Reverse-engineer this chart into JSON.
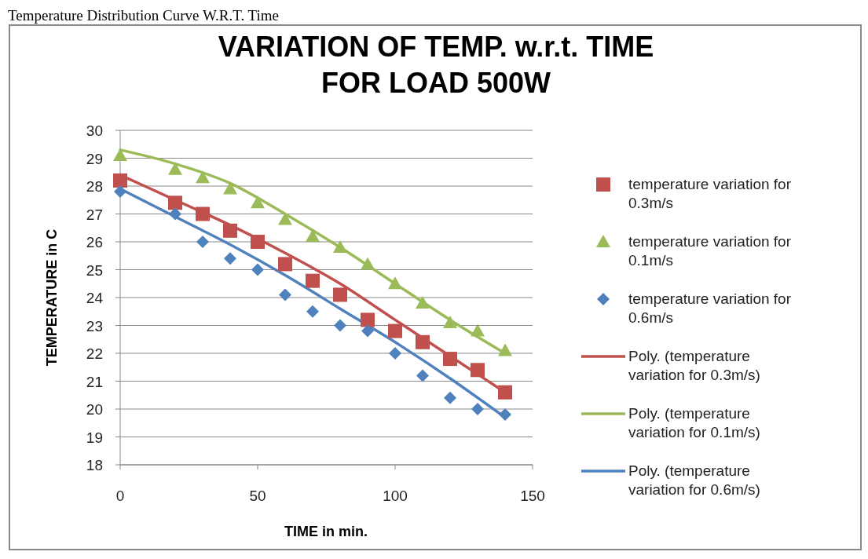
{
  "chart_data": {
    "type": "scatter",
    "title": "VARIATION OF TEMP. w.r.t. TIME FOR LOAD 500W",
    "xlabel": "TIME in min.",
    "ylabel": "TEMPERATURE in C",
    "annotations": [
      "Temperature Distribution Curve W.R.T. Time"
    ],
    "x": [
      0,
      20,
      30,
      40,
      50,
      60,
      70,
      80,
      90,
      100,
      110,
      120,
      130,
      140
    ],
    "series": [
      {
        "name": "temperature variation for 0.3m/s",
        "color": "#c0504d",
        "marker": "square",
        "values": [
          28.2,
          27.4,
          27.0,
          26.4,
          26.0,
          25.2,
          24.6,
          24.1,
          23.2,
          22.8,
          22.4,
          21.8,
          21.4,
          20.6
        ]
      },
      {
        "name": "temperature variation for 0.1m/s",
        "color": "#9bbb59",
        "marker": "triangle",
        "values": [
          29.1,
          28.6,
          28.3,
          27.9,
          27.4,
          26.8,
          26.2,
          25.8,
          25.2,
          24.5,
          23.8,
          23.1,
          22.8,
          22.1
        ]
      },
      {
        "name": "temperature variation for 0.6m/s",
        "color": "#4f81bd",
        "marker": "diamond",
        "values": [
          27.8,
          27.0,
          26.0,
          25.4,
          25.0,
          24.1,
          23.5,
          23.0,
          22.8,
          22.0,
          21.2,
          20.4,
          20.0,
          19.8
        ]
      },
      {
        "name": "Poly. (temperature variation for 0.3m/s)",
        "type": "line",
        "color": "#c0504d",
        "x": [
          0,
          20,
          40,
          60,
          80,
          100,
          120,
          140
        ],
        "values": [
          28.4,
          27.5,
          26.6,
          25.6,
          24.5,
          23.2,
          21.9,
          20.6
        ]
      },
      {
        "name": "Poly. (temperature variation for 0.1m/s)",
        "type": "line",
        "color": "#9bbb59",
        "x": [
          0,
          20,
          40,
          60,
          80,
          100,
          120,
          140
        ],
        "values": [
          29.3,
          28.8,
          28.1,
          27.0,
          25.8,
          24.5,
          23.2,
          22.0
        ]
      },
      {
        "name": "Poly. (temperature variation for 0.6m/s)",
        "type": "line",
        "color": "#4f81bd",
        "x": [
          0,
          20,
          40,
          60,
          80,
          100,
          120,
          140
        ],
        "values": [
          27.9,
          26.9,
          25.9,
          24.8,
          23.6,
          22.4,
          21.1,
          19.7
        ]
      }
    ],
    "xlim": [
      0,
      150
    ],
    "xticks": [
      0,
      50,
      100,
      150
    ],
    "ylim": [
      18,
      30
    ],
    "yticks": [
      18,
      19,
      20,
      21,
      22,
      23,
      24,
      25,
      26,
      27,
      28,
      29,
      30
    ],
    "grid": "y",
    "legend": "right",
    "line_style": "solid"
  }
}
